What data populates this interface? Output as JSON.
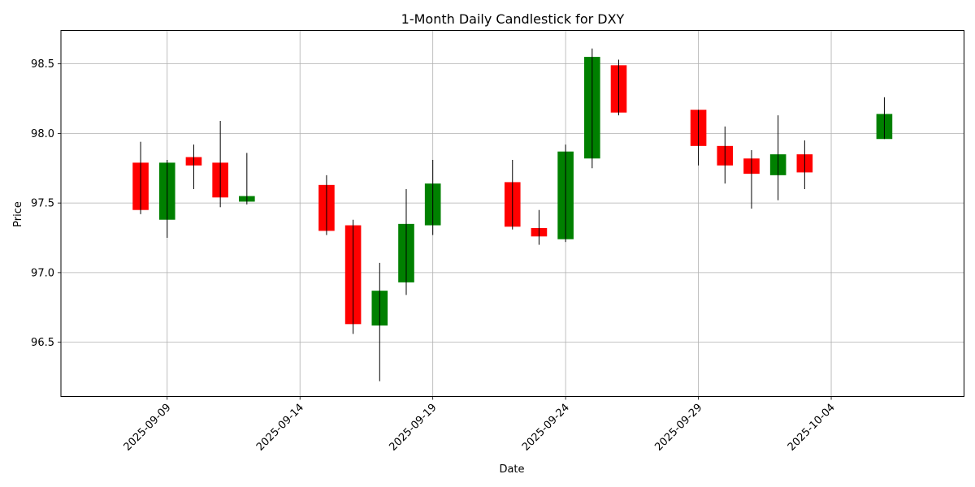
{
  "chart_data": {
    "type": "candlestick",
    "title": "1-Month Daily Candlestick for DXY",
    "xlabel": "Date",
    "ylabel": "Price",
    "grid": true,
    "ylim": [
      96.11,
      98.74
    ],
    "xlim": [
      "2025-09-05",
      "2025-10-09"
    ],
    "x_ticks": [
      "2025-09-09",
      "2025-09-14",
      "2025-09-19",
      "2025-09-24",
      "2025-09-29",
      "2025-10-04"
    ],
    "y_ticks": [
      96.5,
      97.0,
      97.5,
      98.0,
      98.5
    ],
    "y_tick_labels": [
      "96.5",
      "97.0",
      "97.5",
      "98.0",
      "98.5"
    ],
    "colors": {
      "up": "#008000",
      "down": "#ff0000",
      "wick": "#000000",
      "grid": "#b0b0b0"
    },
    "candles": [
      {
        "date": "2025-09-08",
        "open": 97.79,
        "high": 97.94,
        "low": 97.42,
        "close": 97.45
      },
      {
        "date": "2025-09-09",
        "open": 97.38,
        "high": 97.81,
        "low": 97.25,
        "close": 97.79
      },
      {
        "date": "2025-09-10",
        "open": 97.83,
        "high": 97.92,
        "low": 97.6,
        "close": 97.77
      },
      {
        "date": "2025-09-11",
        "open": 97.79,
        "high": 98.09,
        "low": 97.47,
        "close": 97.54
      },
      {
        "date": "2025-09-12",
        "open": 97.51,
        "high": 97.86,
        "low": 97.49,
        "close": 97.55
      },
      {
        "date": "2025-09-15",
        "open": 97.63,
        "high": 97.7,
        "low": 97.27,
        "close": 97.3
      },
      {
        "date": "2025-09-16",
        "open": 97.34,
        "high": 97.38,
        "low": 96.56,
        "close": 96.63
      },
      {
        "date": "2025-09-17",
        "open": 96.62,
        "high": 97.07,
        "low": 96.22,
        "close": 96.87
      },
      {
        "date": "2025-09-18",
        "open": 96.93,
        "high": 97.6,
        "low": 96.84,
        "close": 97.35
      },
      {
        "date": "2025-09-19",
        "open": 97.34,
        "high": 97.81,
        "low": 97.27,
        "close": 97.64
      },
      {
        "date": "2025-09-22",
        "open": 97.65,
        "high": 97.81,
        "low": 97.31,
        "close": 97.33
      },
      {
        "date": "2025-09-23",
        "open": 97.32,
        "high": 97.45,
        "low": 97.2,
        "close": 97.26
      },
      {
        "date": "2025-09-24",
        "open": 97.24,
        "high": 97.92,
        "low": 97.22,
        "close": 97.87
      },
      {
        "date": "2025-09-25",
        "open": 97.82,
        "high": 98.61,
        "low": 97.75,
        "close": 98.55
      },
      {
        "date": "2025-09-26",
        "open": 98.49,
        "high": 98.53,
        "low": 98.13,
        "close": 98.15
      },
      {
        "date": "2025-09-29",
        "open": 98.17,
        "high": 98.17,
        "low": 97.77,
        "close": 97.91
      },
      {
        "date": "2025-09-30",
        "open": 97.91,
        "high": 98.05,
        "low": 97.64,
        "close": 97.77
      },
      {
        "date": "2025-10-01",
        "open": 97.82,
        "high": 97.88,
        "low": 97.46,
        "close": 97.71
      },
      {
        "date": "2025-10-02",
        "open": 97.7,
        "high": 98.13,
        "low": 97.52,
        "close": 97.85
      },
      {
        "date": "2025-10-03",
        "open": 97.85,
        "high": 97.95,
        "low": 97.6,
        "close": 97.72
      },
      {
        "date": "2025-10-06",
        "open": 97.96,
        "high": 98.26,
        "low": 97.96,
        "close": 98.14
      }
    ]
  }
}
